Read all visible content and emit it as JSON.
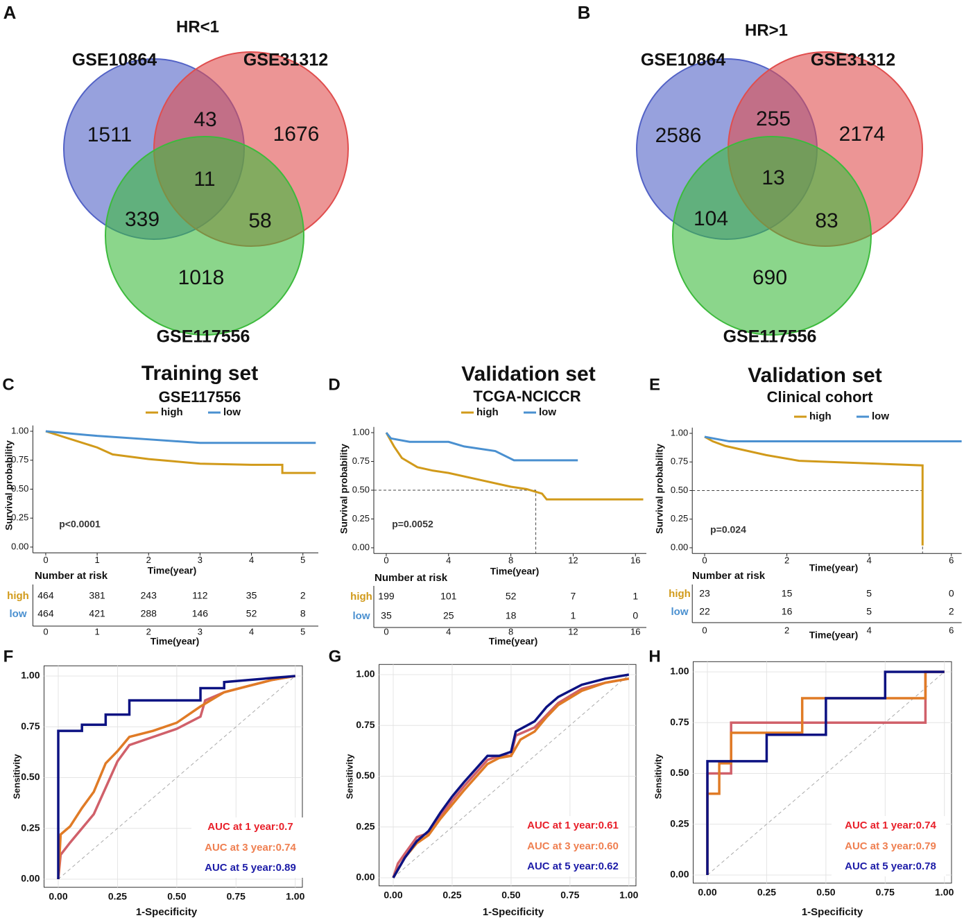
{
  "chart_data": [
    {
      "type": "venn",
      "panel": "A",
      "title": "HR<1",
      "sets": [
        {
          "name": "GSE10864",
          "color": "#5262c6"
        },
        {
          "name": "GSE31312",
          "color": "#e04e4e"
        },
        {
          "name": "GSE117556",
          "color": "#3dba3d"
        }
      ],
      "values": [
        1511,
        1676,
        1018,
        43,
        339,
        58,
        11
      ]
    },
    {
      "type": "venn",
      "panel": "B",
      "title": "HR>1",
      "sets": [
        {
          "name": "GSE10864",
          "color": "#5262c6"
        },
        {
          "name": "GSE31312",
          "color": "#e04e4e"
        },
        {
          "name": "GSE117556",
          "color": "#3dba3d"
        }
      ],
      "values": [
        2586,
        2174,
        690,
        255,
        104,
        83,
        13
      ]
    },
    {
      "type": "survival",
      "panel": "C",
      "title": "Training set",
      "subtitle": "GSE117556",
      "xlabel": "Time(year)",
      "ylabel": "Survival probability",
      "annotation": "p<0.0001",
      "xlim": [
        -0.25,
        5.3
      ],
      "xticks": [
        0,
        1,
        2,
        3,
        4,
        5
      ],
      "ylim": [
        -0.05,
        1.05
      ],
      "yticks": [
        {
          "value": 1,
          "label": "1.00"
        },
        {
          "value": 0.75,
          "label": "0.75"
        },
        {
          "value": 0.5,
          "label": "0.50"
        },
        {
          "value": 0.25,
          "label": "0.25"
        },
        {
          "value": 0,
          "label": "0.00"
        }
      ],
      "series": [
        {
          "name": "high",
          "color": "#d19a1a",
          "x": [
            0,
            0.5,
            1,
            1.3,
            2,
            2.5,
            3,
            4,
            4.6,
            4.6,
            5.25
          ],
          "values": [
            1,
            0.93,
            0.86,
            0.8,
            0.76,
            0.74,
            0.72,
            0.71,
            0.71,
            0.64,
            0.64
          ]
        },
        {
          "name": "low",
          "color": "#4a90d0",
          "x": [
            0,
            1,
            2,
            3,
            4,
            5.25
          ],
          "values": [
            1,
            0.96,
            0.93,
            0.9,
            0.9,
            0.9
          ]
        }
      ],
      "risk_title": "Number at risk",
      "risk": [
        [
          464,
          381,
          243,
          112,
          35,
          2
        ],
        [
          464,
          421,
          288,
          146,
          52,
          8
        ]
      ]
    },
    {
      "type": "survival",
      "panel": "D",
      "title": "Validation set",
      "subtitle": "TCGA-NCICCR",
      "xlabel": "Time(year)",
      "ylabel": "Survival probability",
      "annotation": "p=0.0052",
      "xlim": [
        -0.8,
        16.7
      ],
      "xticks": [
        0,
        4,
        8,
        12,
        16
      ],
      "ylim": [
        -0.05,
        1.05
      ],
      "yticks": [
        {
          "value": 1,
          "label": "1.00"
        },
        {
          "value": 0.75,
          "label": "0.75"
        },
        {
          "value": 0.5,
          "label": "0.50"
        },
        {
          "value": 0.25,
          "label": "0.25"
        },
        {
          "value": 0,
          "label": "0.00"
        }
      ],
      "series": [
        {
          "name": "high",
          "color": "#d19a1a",
          "x": [
            0,
            0.5,
            1,
            2,
            3,
            4,
            6,
            8,
            9,
            10,
            10.3,
            16.5
          ],
          "values": [
            1,
            0.88,
            0.78,
            0.7,
            0.67,
            0.65,
            0.59,
            0.53,
            0.51,
            0.47,
            0.42,
            0.42
          ]
        },
        {
          "name": "low",
          "color": "#4a90d0",
          "x": [
            0,
            0.3,
            1.5,
            4,
            5,
            7,
            8.2,
            12.3
          ],
          "values": [
            1,
            0.95,
            0.92,
            0.92,
            0.88,
            0.84,
            0.76,
            0.76
          ]
        }
      ],
      "median": {
        "x": 9.6,
        "y": 0.5
      },
      "risk_title": "Number at risk",
      "risk": [
        [
          199,
          101,
          52,
          7,
          1
        ],
        [
          35,
          25,
          18,
          1,
          0
        ]
      ]
    },
    {
      "type": "survival",
      "panel": "E",
      "title": "Validation set",
      "subtitle": "Clinical cohort",
      "xlabel": "Time(year)",
      "ylabel": "Survival probability",
      "annotation": "p=0.024",
      "xlim": [
        -0.3,
        6.25
      ],
      "xticks": [
        0,
        2,
        4,
        6
      ],
      "ylim": [
        -0.05,
        1.05
      ],
      "yticks": [
        {
          "value": 1,
          "label": "1.00"
        },
        {
          "value": 0.75,
          "label": "0.75"
        },
        {
          "value": 0.5,
          "label": "0.50"
        },
        {
          "value": 0.25,
          "label": "0.25"
        },
        {
          "value": 0,
          "label": "0.00"
        }
      ],
      "series": [
        {
          "name": "high",
          "color": "#d19a1a",
          "x": [
            0,
            0.2,
            0.5,
            1,
            1.5,
            2.3,
            5.3,
            5.3
          ],
          "values": [
            0.97,
            0.93,
            0.89,
            0.85,
            0.81,
            0.76,
            0.72,
            0.02
          ]
        },
        {
          "name": "low",
          "color": "#4a90d0",
          "x": [
            0,
            0.6,
            6.25
          ],
          "values": [
            0.97,
            0.93,
            0.93
          ]
        }
      ],
      "median": {
        "x": 5.3,
        "y": 0.5
      },
      "risk_title": "Number at risk",
      "risk": [
        [
          23,
          15,
          5,
          0
        ],
        [
          22,
          16,
          5,
          2
        ]
      ]
    },
    {
      "type": "roc",
      "panel": "F",
      "xlabel": "1-Specificity",
      "ylabel": "Sensitivity",
      "xlim": [
        -0.06,
        1.03
      ],
      "xticks": [
        {
          "value": 0,
          "label": "0.00"
        },
        {
          "value": 0.25,
          "label": "0.25"
        },
        {
          "value": 0.5,
          "label": "0.50"
        },
        {
          "value": 0.75,
          "label": "0.75"
        },
        {
          "value": 1,
          "label": "1.00"
        }
      ],
      "ylim": [
        -0.04,
        1.05
      ],
      "yticks": [
        {
          "value": 0,
          "label": "0.00"
        },
        {
          "value": 0.25,
          "label": "0.25"
        },
        {
          "value": 0.5,
          "label": "0.50"
        },
        {
          "value": 0.75,
          "label": "0.75"
        },
        {
          "value": 1,
          "label": "1.00"
        }
      ],
      "series": [
        {
          "name": "AUC at 1 year:0.7",
          "color": "#d0606a",
          "label_color": "#e8202a",
          "x": [
            0,
            0.01,
            0.05,
            0.1,
            0.15,
            0.2,
            0.25,
            0.3,
            0.4,
            0.5,
            0.6,
            0.62,
            0.7,
            0.8,
            0.9,
            1
          ],
          "values": [
            0,
            0.12,
            0.18,
            0.25,
            0.32,
            0.45,
            0.58,
            0.66,
            0.7,
            0.74,
            0.8,
            0.88,
            0.92,
            0.95,
            0.98,
            1
          ]
        },
        {
          "name": "AUC at 3 year:0.74",
          "color": "#e07b26",
          "label_color": "#ef7f50",
          "x": [
            0,
            0.01,
            0.05,
            0.1,
            0.15,
            0.2,
            0.25,
            0.3,
            0.4,
            0.5,
            0.6,
            0.7,
            0.8,
            0.9,
            1
          ],
          "values": [
            0,
            0.22,
            0.26,
            0.35,
            0.43,
            0.57,
            0.63,
            0.7,
            0.73,
            0.77,
            0.85,
            0.92,
            0.95,
            0.98,
            1
          ]
        },
        {
          "name": "AUC at 5 year:0.89",
          "color": "#0c1282",
          "label_color": "#1c1ca8",
          "x": [
            0,
            0,
            0.1,
            0.1,
            0.2,
            0.2,
            0.3,
            0.3,
            0.6,
            0.6,
            0.7,
            0.7,
            0.9,
            1
          ],
          "values": [
            0,
            0.73,
            0.73,
            0.76,
            0.76,
            0.81,
            0.81,
            0.88,
            0.88,
            0.94,
            0.94,
            0.97,
            0.99,
            1
          ]
        }
      ]
    },
    {
      "type": "roc",
      "panel": "G",
      "xlabel": "1-Specificity",
      "ylabel": "Sensitivity",
      "xlim": [
        -0.06,
        1.03
      ],
      "xticks": [
        {
          "value": 0,
          "label": "0.00"
        },
        {
          "value": 0.25,
          "label": "0.25"
        },
        {
          "value": 0.5,
          "label": "0.50"
        },
        {
          "value": 0.75,
          "label": "0.75"
        },
        {
          "value": 1,
          "label": "1.00"
        }
      ],
      "ylim": [
        -0.04,
        1.05
      ],
      "yticks": [
        {
          "value": 0,
          "label": "0.00"
        },
        {
          "value": 0.25,
          "label": "0.25"
        },
        {
          "value": 0.5,
          "label": "0.50"
        },
        {
          "value": 0.75,
          "label": "0.75"
        },
        {
          "value": 1,
          "label": "1.00"
        }
      ],
      "series": [
        {
          "name": "AUC at 1 year:0.61",
          "color": "#d0606a",
          "label_color": "#e8202a",
          "x": [
            0,
            0.02,
            0.05,
            0.1,
            0.15,
            0.2,
            0.25,
            0.3,
            0.4,
            0.45,
            0.5,
            0.52,
            0.6,
            0.65,
            0.7,
            0.8,
            0.9,
            1
          ],
          "values": [
            0,
            0.07,
            0.12,
            0.2,
            0.22,
            0.3,
            0.38,
            0.45,
            0.58,
            0.6,
            0.6,
            0.7,
            0.74,
            0.8,
            0.86,
            0.93,
            0.96,
            0.98
          ]
        },
        {
          "name": "AUC at 3 year:0.60",
          "color": "#e07b26",
          "label_color": "#ef7f50",
          "x": [
            0,
            0.02,
            0.05,
            0.1,
            0.15,
            0.2,
            0.25,
            0.3,
            0.4,
            0.45,
            0.5,
            0.54,
            0.6,
            0.65,
            0.7,
            0.8,
            0.9,
            1
          ],
          "values": [
            0,
            0.04,
            0.1,
            0.17,
            0.21,
            0.29,
            0.36,
            0.43,
            0.56,
            0.59,
            0.6,
            0.68,
            0.72,
            0.79,
            0.85,
            0.92,
            0.96,
            0.98
          ]
        },
        {
          "name": "AUC at 5 year:0.62",
          "color": "#0c1282",
          "label_color": "#1c1ca8",
          "x": [
            0,
            0.02,
            0.05,
            0.1,
            0.15,
            0.2,
            0.25,
            0.3,
            0.4,
            0.45,
            0.5,
            0.52,
            0.6,
            0.65,
            0.7,
            0.8,
            0.9,
            1
          ],
          "values": [
            0,
            0.04,
            0.1,
            0.18,
            0.23,
            0.32,
            0.4,
            0.47,
            0.6,
            0.6,
            0.62,
            0.72,
            0.77,
            0.84,
            0.89,
            0.95,
            0.98,
            1
          ]
        }
      ]
    },
    {
      "type": "roc",
      "panel": "H",
      "xlabel": "1-Specificity",
      "ylabel": "Sensitivity",
      "xlim": [
        -0.06,
        1.03
      ],
      "xticks": [
        {
          "value": 0,
          "label": "0.00"
        },
        {
          "value": 0.25,
          "label": "0.25"
        },
        {
          "value": 0.5,
          "label": "0.50"
        },
        {
          "value": 0.75,
          "label": "0.75"
        },
        {
          "value": 1,
          "label": "1.00"
        }
      ],
      "ylim": [
        -0.04,
        1.05
      ],
      "yticks": [
        {
          "value": 0,
          "label": "0.00"
        },
        {
          "value": 0.25,
          "label": "0.25"
        },
        {
          "value": 0.5,
          "label": "0.50"
        },
        {
          "value": 0.75,
          "label": "0.75"
        },
        {
          "value": 1,
          "label": "1.00"
        }
      ],
      "series": [
        {
          "name": "AUC at 1 year:0.74",
          "color": "#d0606a",
          "label_color": "#e8202a",
          "x": [
            0,
            0,
            0.1,
            0.1,
            0.92,
            0.92,
            1
          ],
          "values": [
            0,
            0.5,
            0.5,
            0.75,
            0.75,
            1,
            1
          ]
        },
        {
          "name": "AUC at 3 year:0.79",
          "color": "#e07b26",
          "label_color": "#ef7f50",
          "x": [
            0,
            0,
            0.05,
            0.05,
            0.1,
            0.1,
            0.4,
            0.4,
            0.92,
            0.92,
            1
          ],
          "values": [
            0,
            0.4,
            0.4,
            0.55,
            0.55,
            0.7,
            0.7,
            0.87,
            0.87,
            1,
            1
          ]
        },
        {
          "name": "AUC at 5 year:0.78",
          "color": "#0c1282",
          "label_color": "#1c1ca8",
          "x": [
            0,
            0,
            0.25,
            0.25,
            0.5,
            0.5,
            0.75,
            0.75,
            1
          ],
          "values": [
            0,
            0.56,
            0.56,
            0.69,
            0.69,
            0.87,
            0.87,
            1,
            1
          ]
        }
      ]
    }
  ]
}
